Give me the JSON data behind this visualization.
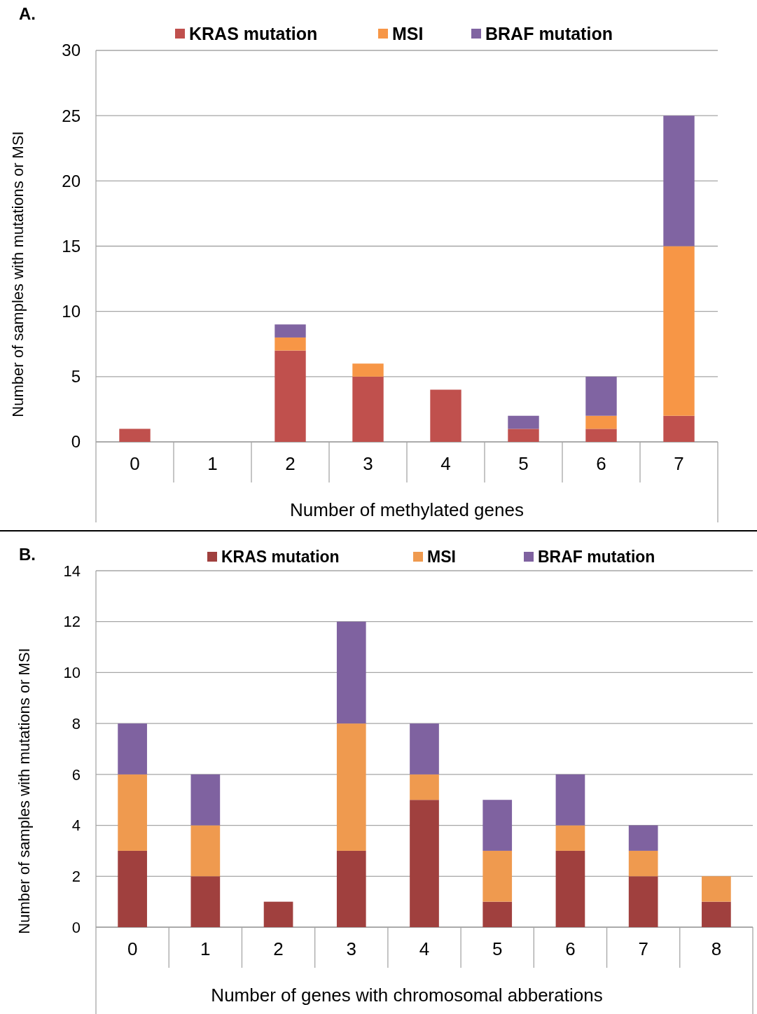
{
  "chart_data": [
    {
      "type": "bar",
      "title": "A.",
      "stacked": true,
      "categories": [
        "0",
        "1",
        "2",
        "3",
        "4",
        "5",
        "6",
        "7"
      ],
      "xlabel": "Number of methylated genes",
      "ylabel": "Number of samples with mutations or MSI",
      "ylim": [
        0,
        30
      ],
      "yticks": [
        0,
        5,
        10,
        15,
        20,
        25,
        30
      ],
      "grid": "y",
      "legend": "top",
      "series": [
        {
          "name": "KRAS mutation",
          "color": "#c0504d",
          "values": [
            1,
            0,
            7,
            5,
            4,
            1,
            1,
            2
          ]
        },
        {
          "name": "MSI",
          "color": "#f79646",
          "values": [
            0,
            0,
            1,
            1,
            0,
            0,
            1,
            13
          ]
        },
        {
          "name": "BRAF mutation",
          "color": "#8064a2",
          "values": [
            0,
            0,
            1,
            0,
            0,
            1,
            3,
            10
          ]
        }
      ]
    },
    {
      "type": "bar",
      "title": "B.",
      "stacked": true,
      "categories": [
        "0",
        "1",
        "2",
        "3",
        "4",
        "5",
        "6",
        "7",
        "8"
      ],
      "xlabel": "Number of genes with chromosomal abberations",
      "ylabel": "Number of samples with mutations or MSI",
      "ylim": [
        0,
        14
      ],
      "yticks": [
        0,
        2,
        4,
        6,
        8,
        10,
        12,
        14
      ],
      "grid": "y",
      "legend": "top",
      "series": [
        {
          "name": "KRAS mutation",
          "color": "#a0403e",
          "values": [
            3,
            2,
            1,
            3,
            5,
            1,
            3,
            2,
            1
          ]
        },
        {
          "name": "MSI",
          "color": "#ef9a4f",
          "values": [
            3,
            2,
            0,
            5,
            1,
            2,
            1,
            1,
            1
          ]
        },
        {
          "name": "BRAF mutation",
          "color": "#7f62a0",
          "values": [
            2,
            2,
            0,
            4,
            2,
            2,
            2,
            1,
            0
          ]
        }
      ]
    }
  ]
}
